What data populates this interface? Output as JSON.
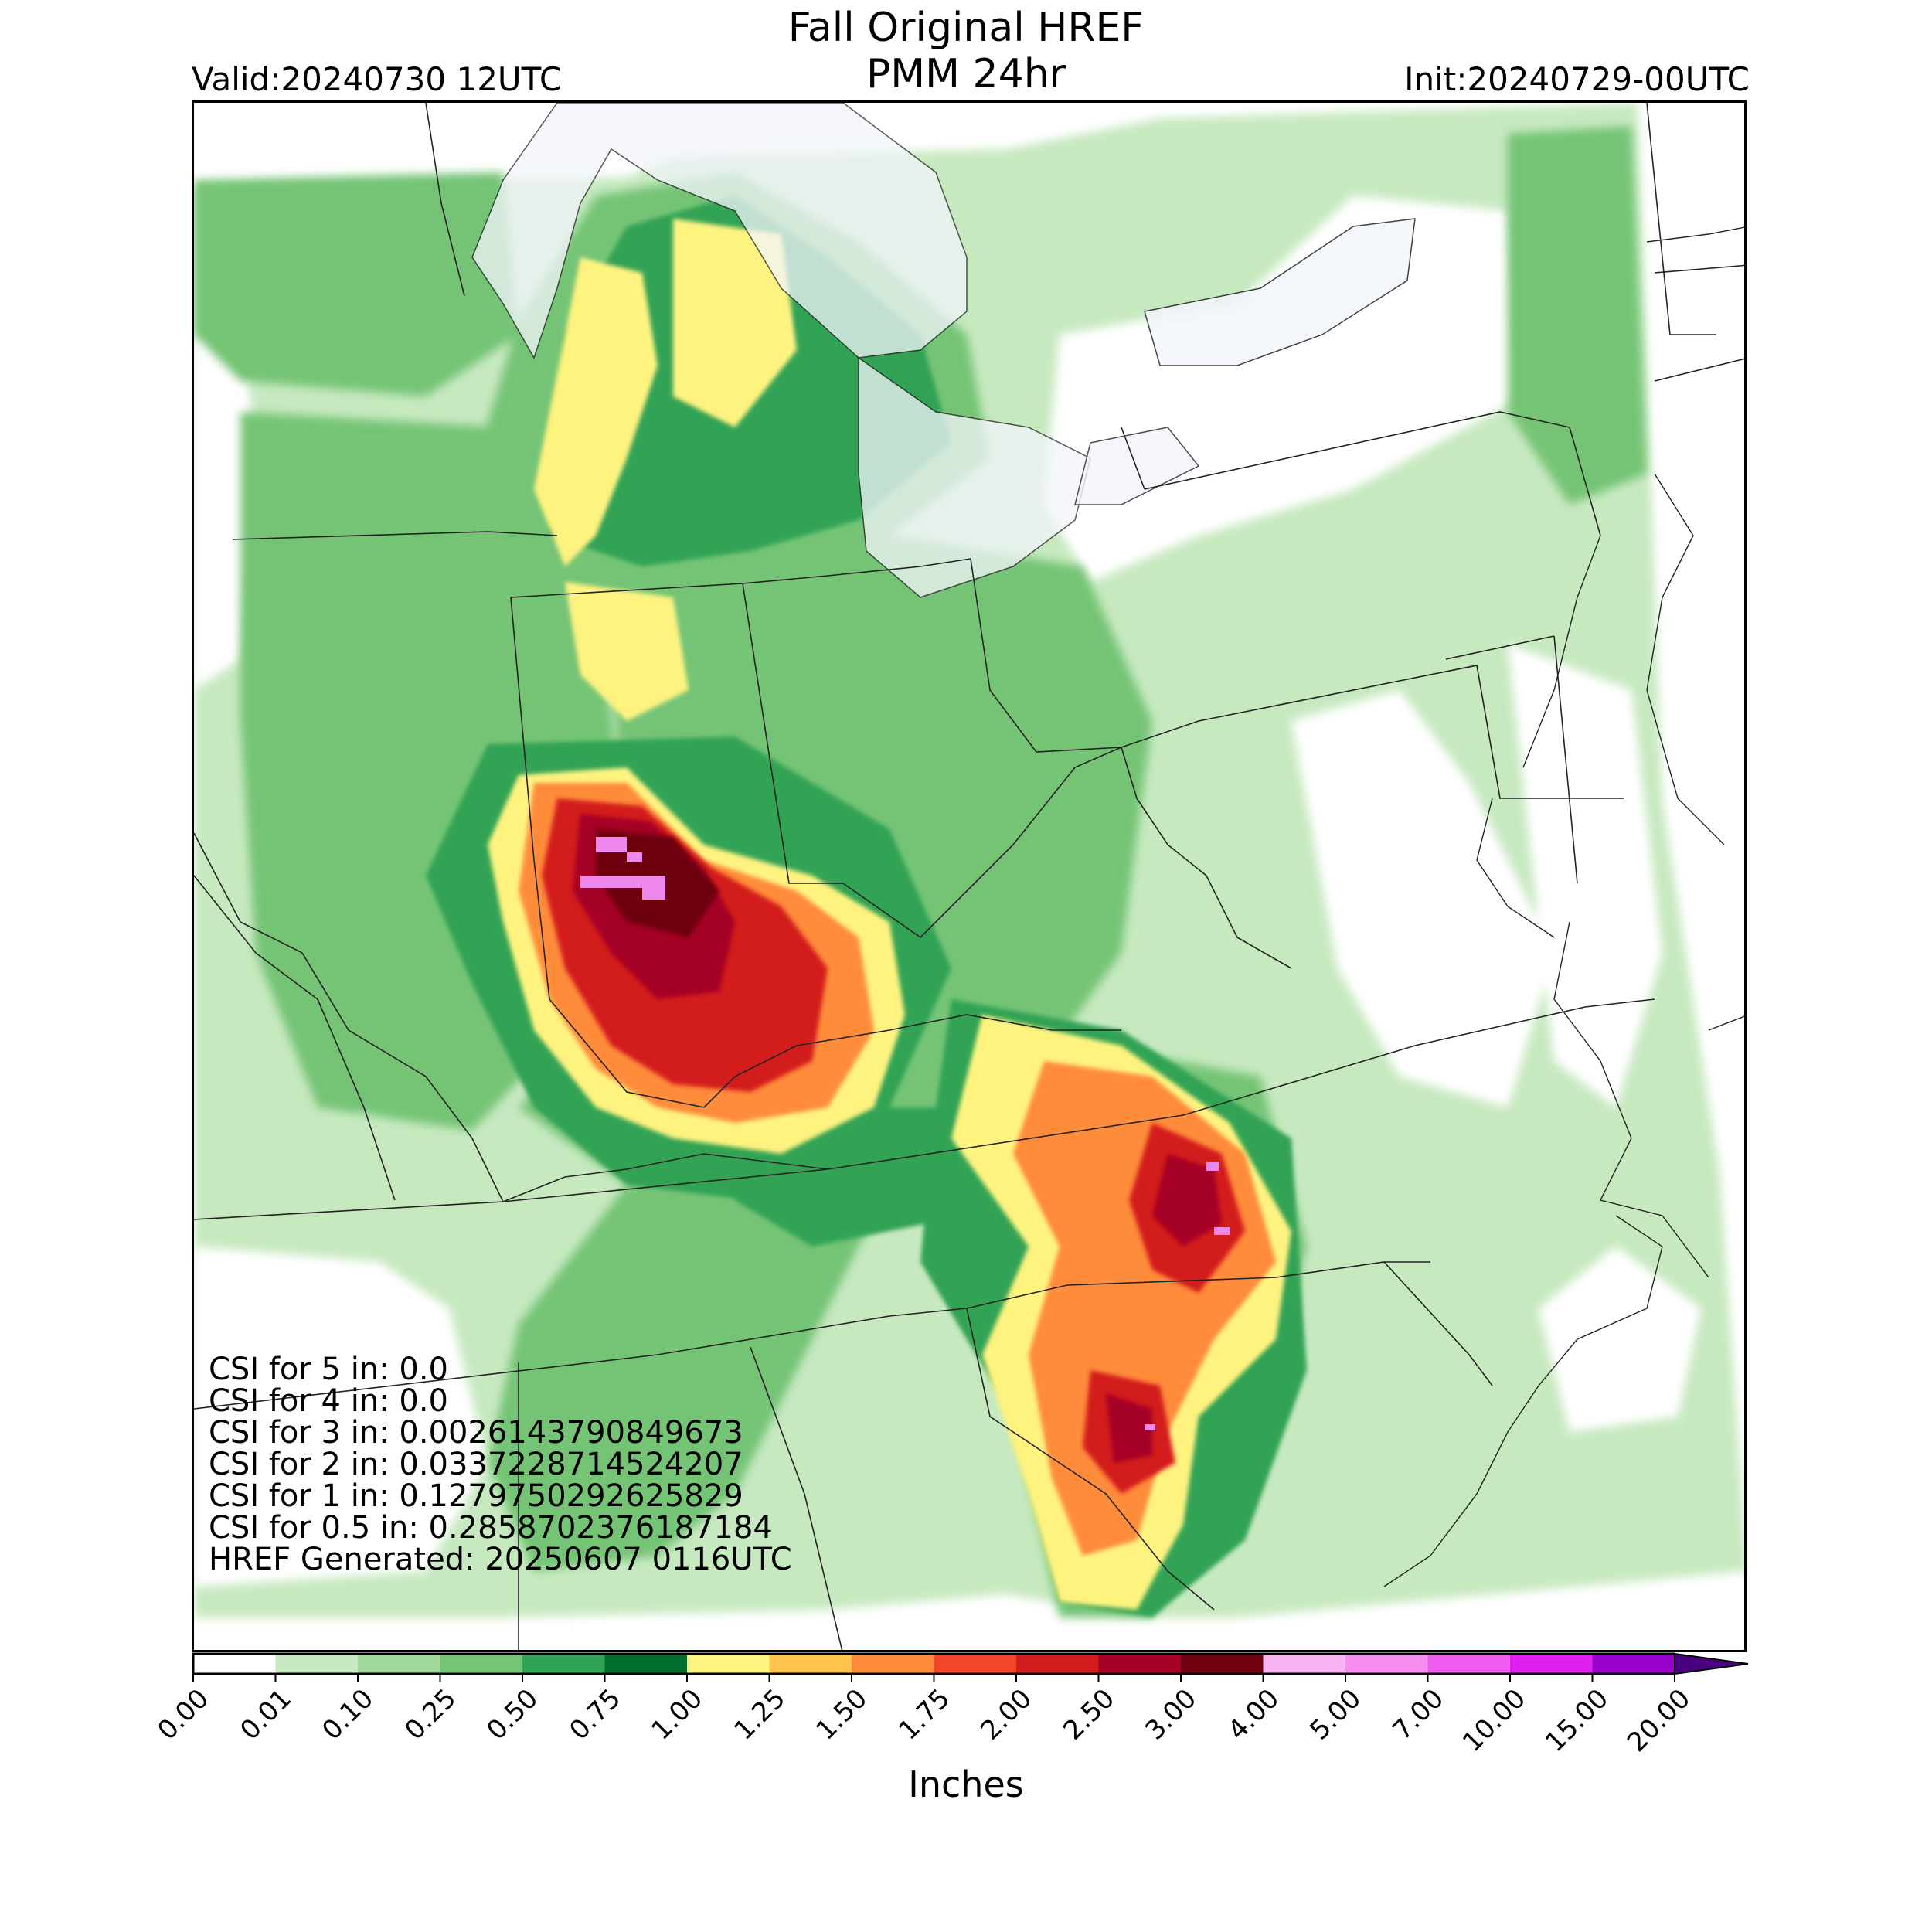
{
  "header": {
    "title_line1": "Fall Original HREF",
    "title_line2": "PMM 24hr",
    "valid": "Valid:20240730 12UTC",
    "init": "Init:20240729-00UTC"
  },
  "stats": [
    "CSI for 5 in: 0.0",
    "CSI for 4 in: 0.0",
    "CSI for 3 in: 0.0026143790849673",
    "CSI for 2 in: 0.0337228714524207",
    "CSI for 1 in: 0.1279750292625829",
    "CSI for 0.5 in: 0.2858702376187184",
    "HREF Generated: 20250607 0116UTC"
  ],
  "colorbar": {
    "units": "Inches",
    "ticks": [
      "0.00",
      "0.01",
      "0.10",
      "0.25",
      "0.50",
      "0.75",
      "1.00",
      "1.25",
      "1.50",
      "1.75",
      "2.00",
      "2.50",
      "3.00",
      "4.00",
      "5.00",
      "7.00",
      "10.00",
      "15.00",
      "20.00"
    ],
    "colors": [
      "#ffffff",
      "#c7e9c0",
      "#a1d99b",
      "#74c476",
      "#31a354",
      "#006d2c",
      "#fff380",
      "#ffc34e",
      "#ff8c3a",
      "#f2472a",
      "#d31d1e",
      "#a50026",
      "#6e0010",
      "#f7b3f3",
      "#f68ff0",
      "#ed5bef",
      "#de21ee",
      "#9a00cc"
    ],
    "extend_color": "#4b0082"
  },
  "map": {
    "region": "Ohio Valley / Mid-Atlantic / Great Lakes",
    "max_rain_color": "#ee88ee"
  }
}
